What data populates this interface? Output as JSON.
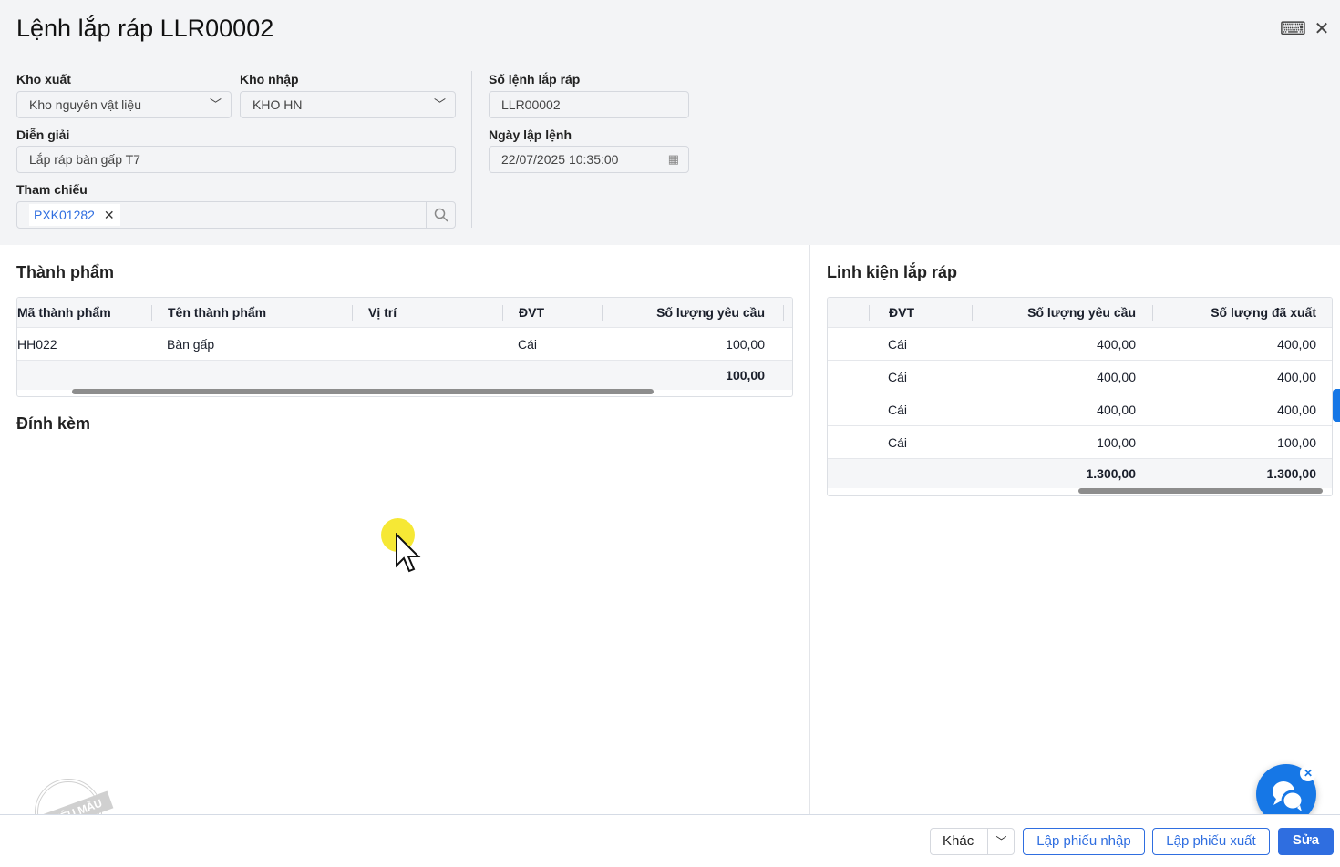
{
  "header": {
    "title": "Lệnh lắp ráp LLR00002",
    "keyboard_icon": "keyboard-icon",
    "close_icon": "close-icon"
  },
  "form": {
    "kho_xuat": {
      "label": "Kho xuất",
      "value": "Kho nguyên vật liệu"
    },
    "kho_nhap": {
      "label": "Kho nhập",
      "value": "KHO HN"
    },
    "dien_giai": {
      "label": "Diễn giải",
      "value": "Lắp ráp bàn gấp T7"
    },
    "tham_chieu": {
      "label": "Tham chiếu",
      "tag": "PXK01282"
    },
    "so_lenh": {
      "label": "Số lệnh lắp ráp",
      "value": "LLR00002"
    },
    "ngay_lap": {
      "label": "Ngày lập lệnh",
      "value": "22/07/2025 10:35:00"
    }
  },
  "thanh_pham": {
    "title": "Thành phẩm",
    "columns": [
      "Mã thành phẩm",
      "Tên thành phẩm",
      "Vị trí",
      "ĐVT",
      "Số lượng yêu cầu"
    ],
    "rows": [
      {
        "ma": "HH022",
        "ten": "Bàn gấp",
        "vitri": "",
        "dvt": "Cái",
        "sl": "100,00"
      }
    ],
    "total": "100,00"
  },
  "dinh_kem": {
    "title": "Đính kèm"
  },
  "linh_kien": {
    "title": "Linh kiện lắp ráp",
    "columns": [
      "ĐVT",
      "Số lượng yêu cầu",
      "Số lượng đã xuất"
    ],
    "rows": [
      {
        "dvt": "Cái",
        "yc": "400,00",
        "dx": "400,00"
      },
      {
        "dvt": "Cái",
        "yc": "400,00",
        "dx": "400,00"
      },
      {
        "dvt": "Cái",
        "yc": "400,00",
        "dx": "400,00"
      },
      {
        "dvt": "Cái",
        "yc": "100,00",
        "dx": "100,00"
      }
    ],
    "total_yc": "1.300,00",
    "total_dx": "1.300,00"
  },
  "footer": {
    "khac": "Khác",
    "lap_phieu_nhap": "Lập phiếu nhập",
    "lap_phieu_xuat": "Lập phiếu xuất",
    "sua": "Sửa"
  },
  "watermark": "DỮ LIỆU MẪU",
  "colors": {
    "primary": "#2f6ee0",
    "chat": "#1677e6"
  }
}
